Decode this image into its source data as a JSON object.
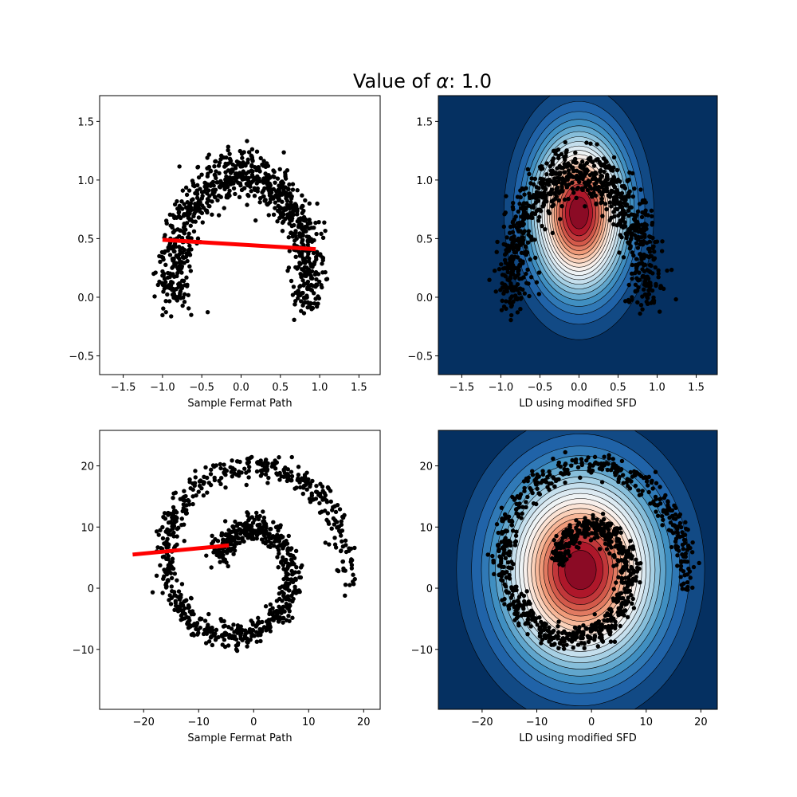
{
  "figure": {
    "title_prefix": "Value of ",
    "title_symbol": "α",
    "title_suffix": ": 1.0"
  },
  "colors": {
    "points": "#000000",
    "path": "#ff0000",
    "colormap": [
      "#67001f",
      "#b2182b",
      "#d6604d",
      "#f4a582",
      "#fddbc7",
      "#f7f7f7",
      "#d1e5f0",
      "#92c5de",
      "#4393c3",
      "#2166ac",
      "#053061"
    ]
  },
  "chart_data": [
    {
      "id": "moons-fermat",
      "type": "scatter",
      "xlabel": "Sample Fermat Path",
      "ylabel": "",
      "xlim": [
        -1.8,
        1.77
      ],
      "ylim": [
        -0.66,
        1.72
      ],
      "xticks": [
        -1.5,
        -1.0,
        -0.5,
        0.0,
        0.5,
        1.0,
        1.5
      ],
      "yticks": [
        -0.5,
        0.0,
        0.5,
        1.0,
        1.5
      ],
      "tick_labels_x": [
        "−1.5",
        "−1.0",
        "−0.5",
        "0.0",
        "0.5",
        "1.0",
        "1.5"
      ],
      "tick_labels_y": [
        "−0.5",
        "0.0",
        "0.5",
        "1.0",
        "1.5"
      ],
      "point_shape": {
        "kind": "arc",
        "center": [
          0.0,
          0.2
        ],
        "radius": 0.85,
        "theta_deg": [
          -15,
          195
        ],
        "noise": 0.11,
        "n": 900,
        "seed": 7
      },
      "fermat_path": {
        "x": [
          -1.0,
          0.95
        ],
        "y": [
          0.49,
          0.41
        ]
      }
    },
    {
      "id": "moons-density",
      "type": "contour",
      "xlabel": "LD using modified SFD",
      "ylabel": "",
      "xlim": [
        -1.8,
        1.77
      ],
      "ylim": [
        -0.66,
        1.72
      ],
      "xticks": [
        -1.5,
        -1.0,
        -0.5,
        0.0,
        0.5,
        1.0,
        1.5
      ],
      "yticks": [
        -0.5,
        0.0,
        0.5,
        1.0,
        1.5
      ],
      "tick_labels_x": [
        "−1.5",
        "−1.0",
        "−0.5",
        "0.0",
        "0.5",
        "1.0",
        "1.5"
      ],
      "tick_labels_y": [
        "−0.5",
        "0.0",
        "0.5",
        "1.0",
        "1.5"
      ],
      "point_shape": {
        "kind": "arc",
        "center": [
          0.0,
          0.2
        ],
        "radius": 0.85,
        "theta_deg": [
          -15,
          195
        ],
        "noise": 0.11,
        "n": 900,
        "seed": 11
      },
      "density_peak": [
        0.0,
        0.72
      ],
      "density_spread": [
        0.55,
        0.62
      ],
      "levels": 20
    },
    {
      "id": "spiral-fermat",
      "type": "scatter",
      "xlabel": "Sample Fermat Path",
      "ylabel": "",
      "xlim": [
        -28.0,
        23.0
      ],
      "ylim": [
        -19.8,
        25.8
      ],
      "xticks": [
        -20,
        -10,
        0,
        10,
        20
      ],
      "yticks": [
        -10,
        0,
        10,
        20
      ],
      "tick_labels_x": [
        "−20",
        "−10",
        "0",
        "10",
        "20"
      ],
      "tick_labels_y": [
        "−10",
        "0",
        "10",
        "20"
      ],
      "point_shape": {
        "kind": "spiral",
        "center": [
          -2.0,
          3.5
        ],
        "start_deg": -10,
        "end_deg": 520,
        "r0": 4.0,
        "r1": 19.5,
        "noise": 1.0,
        "n": 1000,
        "seed": 3
      },
      "fermat_path": {
        "x": [
          -22.0,
          -4.5
        ],
        "y": [
          5.5,
          7.0
        ]
      }
    },
    {
      "id": "spiral-density",
      "type": "contour",
      "xlabel": "LD using modified SFD",
      "ylabel": "",
      "xlim": [
        -28.0,
        23.0
      ],
      "ylim": [
        -19.8,
        25.8
      ],
      "xticks": [
        -20,
        -10,
        0,
        10,
        20
      ],
      "yticks": [
        -10,
        0,
        10,
        20
      ],
      "tick_labels_x": [
        "−20",
        "−10",
        "0",
        "10",
        "20"
      ],
      "tick_labels_y": [
        "−10",
        "0",
        "10",
        "20"
      ],
      "point_shape": {
        "kind": "spiral",
        "center": [
          -2.0,
          3.5
        ],
        "start_deg": -10,
        "end_deg": 520,
        "r0": 4.0,
        "r1": 19.5,
        "noise": 1.0,
        "n": 1000,
        "seed": 5
      },
      "density_peak": [
        -2.0,
        3.0
      ],
      "density_spread": [
        13.0,
        14.5
      ],
      "levels": 20
    }
  ]
}
